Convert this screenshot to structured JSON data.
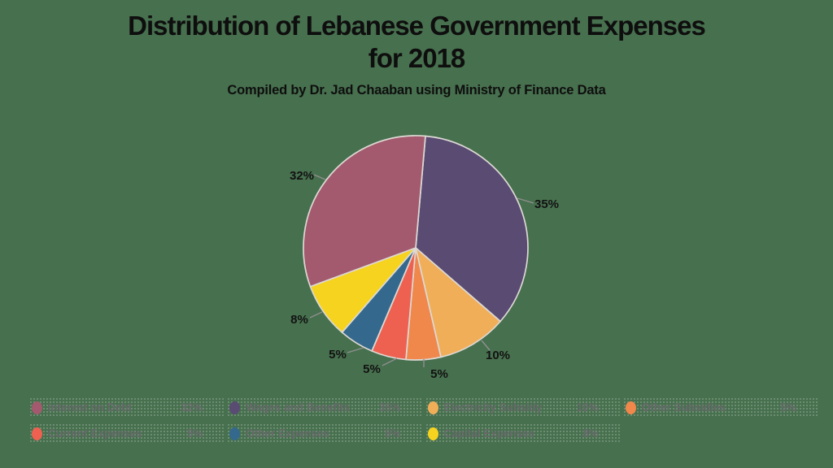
{
  "title": {
    "line1": "Distribution of Lebanese Government Expenses",
    "line2": "for 2018"
  },
  "subtitle": "Compiled by Dr. Jad Chaaban using Ministry of Finance Data",
  "colors": {
    "background": "#47704e",
    "title_text": "#0e0e0e",
    "value_label_text": "#121212",
    "legend_text": "#67696b",
    "connector_line": "#8f8f8f",
    "slice_stroke": "#ddd9d4"
  },
  "chart_data": {
    "type": "pie",
    "title": "Distribution of Lebanese Government Expenses for 2018",
    "subtitle": "Compiled by Dr. Jad Chaaban using Ministry of Finance Data",
    "start_angle_deg": 5,
    "direction": "clockwise",
    "legend_position": "bottom",
    "slices": [
      {
        "label": "Wages and Benefits",
        "value": 35,
        "pct": "35%",
        "color": "#5a4b73"
      },
      {
        "label": "Electricity Subsidy",
        "value": 10,
        "pct": "10%",
        "color": "#f0ae59"
      },
      {
        "label": "Other Subsidies",
        "value": 5,
        "pct": "5%",
        "color": "#f0874b"
      },
      {
        "label": "Current Expenses",
        "value": 5,
        "pct": "5%",
        "color": "#ee6150"
      },
      {
        "label": "Other Expenses",
        "value": 5,
        "pct": "5%",
        "color": "#34698d"
      },
      {
        "label": "Capital Expenses",
        "value": 8,
        "pct": "8%",
        "color": "#f6d31f"
      },
      {
        "label": "Interest on Debt",
        "value": 32,
        "pct": "32%",
        "color": "#a35a6e"
      }
    ]
  },
  "legend": {
    "rows": [
      [
        {
          "label": "Interest on Debt",
          "pct": "32%",
          "color": "#a35a6e"
        },
        {
          "label": "Wages and Benefits",
          "pct": "35%",
          "color": "#5a4b73"
        },
        {
          "label": "Electricity Subsidy",
          "pct": "10%",
          "color": "#f0ae59"
        },
        {
          "label": "Other Subsidies",
          "pct": "5%",
          "color": "#f0874b"
        }
      ],
      [
        {
          "label": "Current Expenses",
          "pct": "5%",
          "color": "#ee6150"
        },
        {
          "label": "Other Expenses",
          "pct": "5%",
          "color": "#34698d"
        },
        {
          "label": "Capital Expenses",
          "pct": "8%",
          "color": "#f6d31f"
        }
      ]
    ]
  }
}
